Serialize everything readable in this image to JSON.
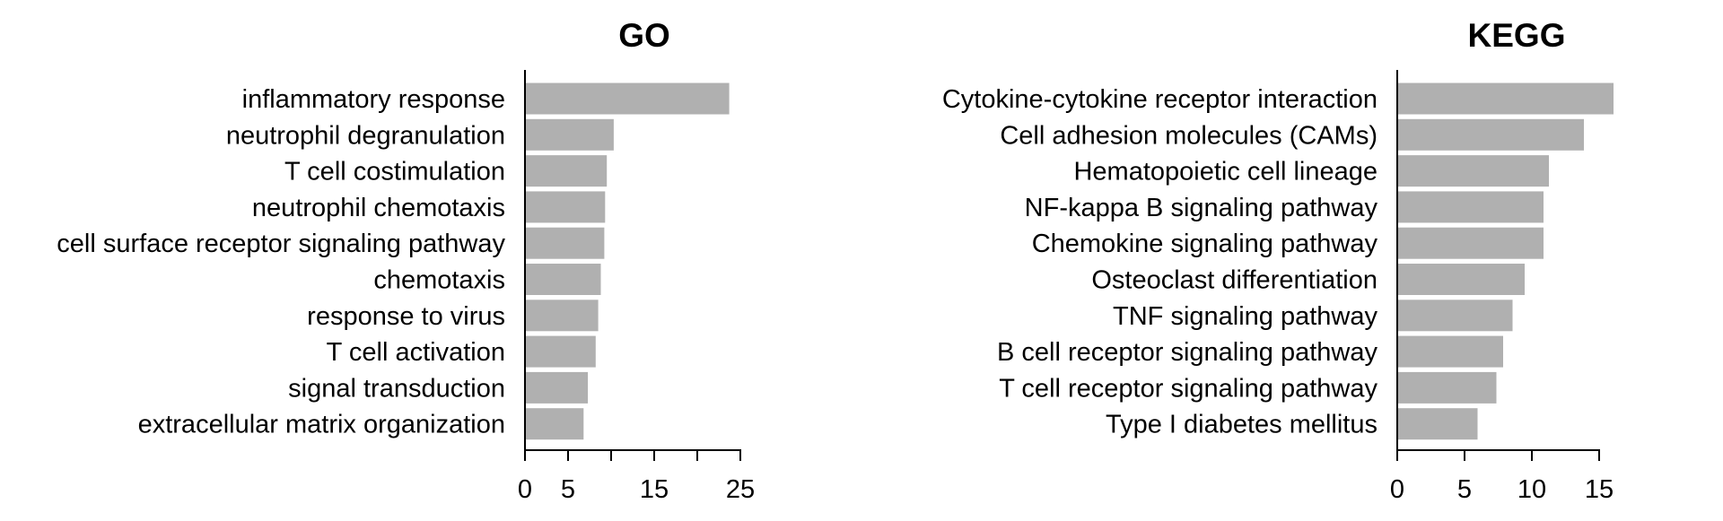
{
  "colors": {
    "bar": "#b0b0b0",
    "axis": "#000000",
    "background": "#ffffff"
  },
  "chart_data": [
    {
      "type": "bar",
      "orientation": "horizontal",
      "title": "GO",
      "xlabel": "",
      "ylabel": "",
      "categories": [
        "inflammatory response",
        "neutrophil degranulation",
        "T cell costimulation",
        "neutrophil chemotaxis",
        "cell surface receptor signaling pathway",
        "chemotaxis",
        "response to virus",
        "T cell activation",
        "signal transduction",
        "extracellular matrix organization"
      ],
      "values": [
        23.6,
        10.2,
        9.4,
        9.2,
        9.1,
        8.7,
        8.4,
        8.1,
        7.2,
        6.7
      ],
      "xlim": [
        0,
        25
      ],
      "xticks": [
        0,
        5,
        10,
        15,
        20,
        25
      ],
      "xtick_labels": [
        "0",
        "5",
        "",
        "15",
        "",
        "25"
      ],
      "grid": false,
      "legend": "none"
    },
    {
      "type": "bar",
      "orientation": "horizontal",
      "title": "KEGG",
      "xlabel": "",
      "ylabel": "",
      "categories": [
        "Cytokine-cytokine receptor interaction",
        "Cell adhesion molecules (CAMs)",
        "Hematopoietic cell lineage",
        "NF-kappa B signaling pathway",
        "Chemokine signaling pathway",
        "Osteoclast differentiation",
        "TNF signaling pathway",
        "B cell receptor signaling pathway",
        "T cell receptor signaling pathway",
        "Type I diabetes mellitus"
      ],
      "values": [
        16.0,
        13.8,
        11.2,
        10.8,
        10.8,
        9.4,
        8.5,
        7.8,
        7.3,
        5.9
      ],
      "xlim": [
        0,
        15
      ],
      "xticks": [
        0,
        5,
        10,
        15
      ],
      "xtick_labels": [
        "0",
        "5",
        "10",
        "15"
      ],
      "grid": false,
      "legend": "none"
    }
  ]
}
